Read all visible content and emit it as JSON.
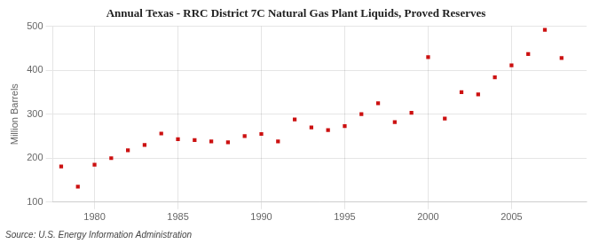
{
  "chart_data": {
    "type": "scatter",
    "title": "Annual Texas - RRC District 7C Natural Gas Plant Liquids, Proved Reserves",
    "ylabel": "Million Barrels",
    "source": "Source: U.S. Energy Information Administration",
    "x": [
      1978,
      1979,
      1980,
      1981,
      1982,
      1983,
      1984,
      1985,
      1986,
      1987,
      1988,
      1989,
      1990,
      1991,
      1992,
      1993,
      1994,
      1995,
      1996,
      1997,
      1998,
      1999,
      2000,
      2001,
      2002,
      2003,
      2004,
      2005,
      2006,
      2007,
      2008
    ],
    "values": [
      181,
      135,
      185,
      200,
      218,
      230,
      256,
      243,
      241,
      238,
      236,
      250,
      255,
      238,
      288,
      270,
      264,
      273,
      300,
      325,
      282,
      303,
      430,
      290,
      350,
      345,
      384,
      411,
      437,
      492,
      428
    ],
    "color": "#cc1111",
    "marker": "square",
    "grid": true,
    "xlim": [
      1977.5,
      2009.5
    ],
    "xticks": [
      1980,
      1985,
      1990,
      1995,
      2000,
      2005
    ],
    "ylim": [
      100,
      500
    ],
    "yticks": [
      100,
      200,
      300,
      400,
      500
    ]
  }
}
